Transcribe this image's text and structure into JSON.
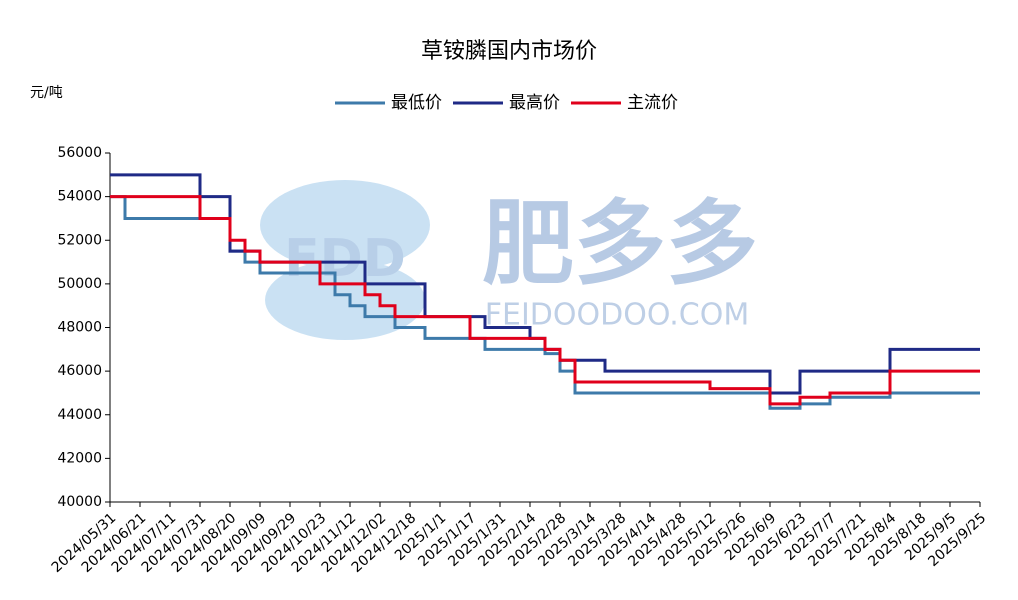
{
  "chart_data": {
    "type": "line",
    "step": true,
    "title": "草铵膦国内市场价",
    "ylabel": "元/吨",
    "watermark": {
      "logo": "FDD",
      "text": "肥多多",
      "url": "FEIDOODOO.COM"
    },
    "legend": "top",
    "categories": [
      "2024/05/31",
      null,
      "2024/06/21",
      null,
      "2024/07/11",
      null,
      "2024/07/31",
      null,
      "2024/08/20",
      null,
      "2024/09/09",
      null,
      "2024/09/29",
      null,
      "2024/10/23",
      null,
      "2024/11/12",
      null,
      "2024/12/02",
      null,
      "2024/12/18",
      null,
      "2025/1/1",
      null,
      "2025/1/17",
      null,
      "2025/1/31",
      null,
      "2025/2/14",
      null,
      "2025/2/28",
      null,
      "2025/3/14",
      null,
      "2025/3/28",
      null,
      "2025/4/14",
      null,
      "2025/4/28",
      null,
      "2025/5/12",
      null,
      "2025/5/26",
      null,
      "2025/6/9",
      null,
      "2025/6/23",
      null,
      "2025/7/7",
      null,
      "2025/7/21",
      null,
      "2025/8/4",
      null,
      "2025/8/18",
      null,
      "2025/9/5",
      null,
      "2025/9/25"
    ],
    "series": [
      {
        "name": "最低价",
        "color": "#3d7aaa",
        "values": [
          54000,
          53000,
          53000,
          53000,
          53000,
          53000,
          53000,
          53000,
          51500,
          51000,
          50500,
          50500,
          50500,
          50500,
          50500,
          49500,
          49000,
          48500,
          48500,
          48000,
          48000,
          47500,
          47500,
          47500,
          47500,
          47000,
          47000,
          47000,
          47000,
          46800,
          46000,
          45000,
          45000,
          45000,
          45000,
          45000,
          45000,
          45000,
          45000,
          45000,
          45000,
          45000,
          45000,
          45000,
          44300,
          44300,
          44500,
          44500,
          44800,
          44800,
          44800,
          44800,
          45000,
          45000,
          45000,
          45000,
          45000,
          45000,
          45000
        ]
      },
      {
        "name": "最高价",
        "color": "#1f2a86",
        "values": [
          55000,
          55000,
          55000,
          55000,
          55000,
          55000,
          54000,
          54000,
          51500,
          51500,
          51000,
          51000,
          51000,
          51000,
          51000,
          51000,
          51000,
          50000,
          50000,
          50000,
          50000,
          48500,
          48500,
          48500,
          48500,
          48000,
          48000,
          48000,
          47500,
          47000,
          46500,
          46500,
          46500,
          46000,
          46000,
          46000,
          46000,
          46000,
          46000,
          46000,
          46000,
          46000,
          46000,
          46000,
          45000,
          45000,
          46000,
          46000,
          46000,
          46000,
          46000,
          46000,
          47000,
          47000,
          47000,
          47000,
          47000,
          47000,
          47000
        ]
      },
      {
        "name": "主流价",
        "color": "#e0001b",
        "values": [
          54000,
          54000,
          54000,
          54000,
          54000,
          54000,
          53000,
          53000,
          52000,
          51500,
          51000,
          51000,
          51000,
          51000,
          50000,
          50000,
          50000,
          49500,
          49000,
          48500,
          48500,
          48500,
          48500,
          48500,
          47500,
          47500,
          47500,
          47500,
          47500,
          47000,
          46500,
          45500,
          45500,
          45500,
          45500,
          45500,
          45500,
          45500,
          45500,
          45500,
          45200,
          45200,
          45200,
          45200,
          44500,
          44500,
          44800,
          44800,
          45000,
          45000,
          45000,
          45000,
          46000,
          46000,
          46000,
          46000,
          46000,
          46000,
          46000
        ]
      }
    ],
    "ylim": [
      40000,
      56000
    ],
    "yticks": [
      40000,
      42000,
      44000,
      46000,
      48000,
      50000,
      52000,
      54000,
      56000
    ],
    "grid": false
  }
}
